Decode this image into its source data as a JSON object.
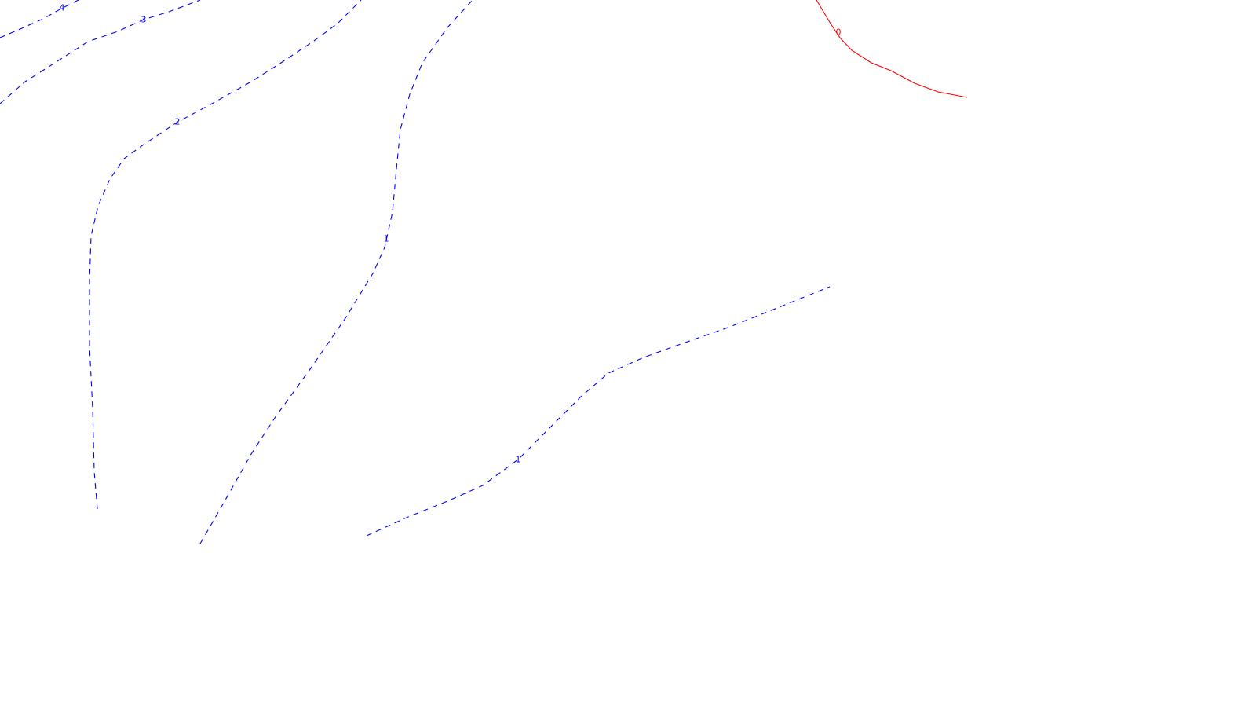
{
  "colors": {
    "background": "#ffffff",
    "negative_contour": "#0000ff",
    "zero_contour": "#ff0000"
  },
  "contours": [
    {
      "level_label": "4",
      "color": "#0000ff",
      "style": "dashed"
    },
    {
      "level_label": "3",
      "color": "#0000ff",
      "style": "dashed"
    },
    {
      "level_label": "2",
      "color": "#0000ff",
      "style": "dashed"
    },
    {
      "level_label": "1",
      "color": "#0000ff",
      "style": "dashed"
    },
    {
      "level_label": "1",
      "color": "#0000ff",
      "style": "dashed"
    },
    {
      "level_label": "0",
      "color": "#ff0000",
      "style": "solid"
    }
  ]
}
